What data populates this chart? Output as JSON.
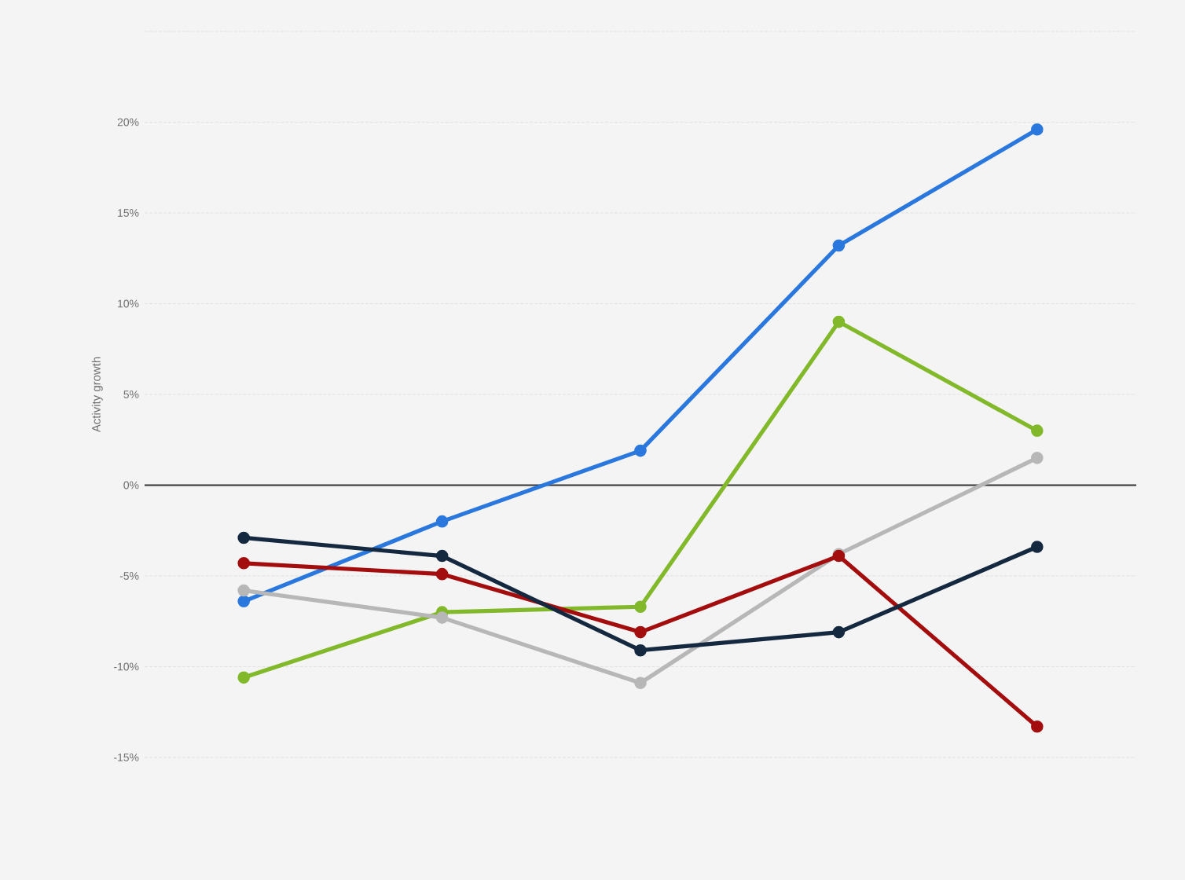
{
  "chart_data": {
    "type": "line",
    "ylabel": "Activity growth",
    "categories": [
      null,
      null,
      null,
      null,
      null
    ],
    "series": [
      {
        "color": "#2a78de",
        "values": [
          -6.4,
          -2.0,
          1.9,
          13.2,
          19.6
        ]
      },
      {
        "color": "#82b92a",
        "values": [
          -10.6,
          -7.0,
          -6.7,
          9.0,
          3.0
        ]
      },
      {
        "color": "#b7b7b7",
        "values": [
          -5.8,
          -7.3,
          -10.9,
          -3.8,
          1.5
        ]
      },
      {
        "color": "#a30d0d",
        "values": [
          -4.3,
          -4.9,
          -8.1,
          -3.9,
          -13.3
        ]
      },
      {
        "color": "#14283f",
        "values": [
          -2.9,
          -3.9,
          -9.1,
          -8.1,
          -3.4
        ]
      }
    ],
    "ylim": [
      -15,
      25
    ],
    "yticks": [
      {
        "value": -15,
        "label": "-15%"
      },
      {
        "value": -10,
        "label": "-10%"
      },
      {
        "value": -5,
        "label": "-5%"
      },
      {
        "value": 0,
        "label": "0%"
      },
      {
        "value": 5,
        "label": "5%"
      },
      {
        "value": 10,
        "label": "10%"
      },
      {
        "value": 15,
        "label": "15%"
      },
      {
        "value": 20,
        "label": "20%"
      },
      {
        "value": 25,
        "label": null
      }
    ],
    "ref_lines": [
      {
        "axis": "y",
        "value": 0,
        "color": "#333333"
      }
    ],
    "grid": "y",
    "marker": "circle",
    "line_style": "solid"
  }
}
